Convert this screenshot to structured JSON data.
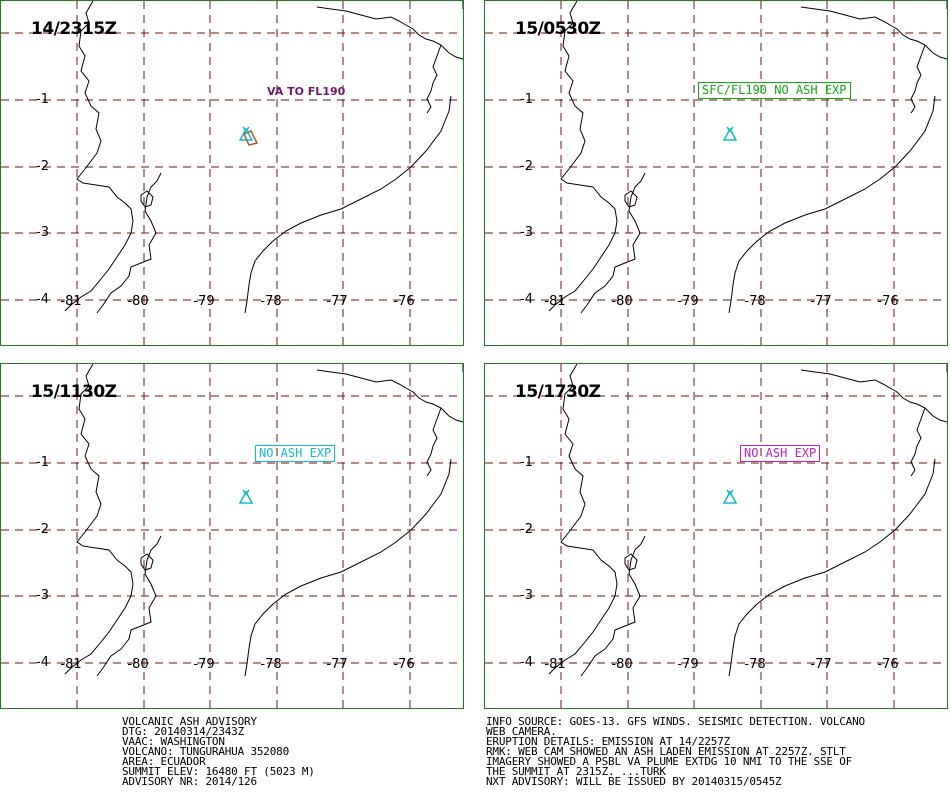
{
  "panels": [
    {
      "time": "14/2315Z",
      "label": "VA TO FL190",
      "label_style": "plain",
      "label_color": "#6b1a6b",
      "show_ash_area": true
    },
    {
      "time": "15/0530Z",
      "label": "SFC/FL190 NO ASH EXP",
      "label_style": "box",
      "label_color": "#11aa11",
      "show_ash_area": false
    },
    {
      "time": "15/1130Z",
      "label": "NO ASH EXP",
      "label_style": "box",
      "label_color": "#11bbcc",
      "show_ash_area": false
    },
    {
      "time": "15/1730Z",
      "label": "NO ASH EXP",
      "label_style": "box",
      "label_color": "#bb22bb",
      "show_ash_area": false
    }
  ],
  "grid": {
    "lat_labels": [
      "-1",
      "-2",
      "-3",
      "-4"
    ],
    "lon_labels": [
      "-81",
      "-80",
      "-79",
      "-78",
      "-77",
      "-76"
    ]
  },
  "colors": {
    "grid": "#7a0f0f",
    "coast": "#000000",
    "volcano": "#11bbcc",
    "ash": "#a0522d",
    "border": "#1f7a1f"
  },
  "volcano_icon": "volcano-triangle-icon",
  "advisory_left": [
    "VOLCANIC ASH ADVISORY",
    "DTG: 20140314/2343Z",
    "VAAC: WASHINGTON",
    "VOLCANO: TUNGURAHUA 352080",
    "AREA: ECUADOR",
    "SUMMIT ELEV: 16480 FT (5023 M)",
    "ADVISORY NR: 2014/126"
  ],
  "advisory_right": [
    "INFO SOURCE: GOES-13. GFS WINDS. SEISMIC DETECTION. VOLCANO",
    "WEB CAMERA.",
    "ERUPTION DETAILS: EMISSION AT 14/2257Z",
    "RMK: WEB CAM SHOWED AN ASH LADEN EMISSION AT 2257Z. STLT",
    "IMAGERY SHOWED A PSBL VA PLUME EXTDG 10 NMI TO THE SSE OF",
    "THE SUMMIT AT 2315Z. ...TURK",
    "NXT ADVISORY: WILL BE ISSUED BY 20140315/0545Z"
  ]
}
